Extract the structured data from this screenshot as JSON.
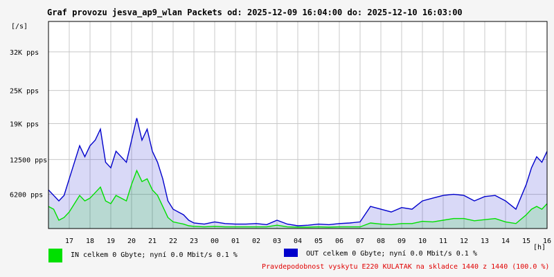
{
  "title": "Graf provozu jesva_ap9_wlan Packets od: 2025-12-09 16:04:00 do: 2025-12-10 16:03:00",
  "colors": {
    "in": "#00e000",
    "out": "#0000cc",
    "grid": "#c8c8c8",
    "plot_bg": "#ffffff",
    "note": "#e00000"
  },
  "legend": {
    "in": "IN celkem 0 Gbyte; nyní   0.0 Mbit/s 0.1 %",
    "out": "OUT celkem 0 Gbyte; nyní   0.0 Mbit/s 0.1 %"
  },
  "note": "Pravdepodobnost vyskytu E220 KULATAK na skladce 1440 z 1440 (100.0 %)",
  "chart_data": {
    "type": "area",
    "title": "Graf provozu jesva_ap9_wlan Packets od: 2025-12-09 16:04:00 do: 2025-12-10 16:03:00",
    "ylabel": "[/s]",
    "xlabel": "[h]",
    "ylim": [
      0,
      37500
    ],
    "xlim": [
      16,
      40
    ],
    "y_ticks": [
      {
        "value": 6200,
        "label": "6200 pps"
      },
      {
        "value": 12500,
        "label": "12500 pps"
      },
      {
        "value": 19000,
        "label": "19K pps"
      },
      {
        "value": 25000,
        "label": "25K pps"
      },
      {
        "value": 32000,
        "label": "32K pps"
      }
    ],
    "x_ticks": [
      {
        "value": 17,
        "label": "17"
      },
      {
        "value": 18,
        "label": "18"
      },
      {
        "value": 19,
        "label": "19"
      },
      {
        "value": 20,
        "label": "20"
      },
      {
        "value": 21,
        "label": "21"
      },
      {
        "value": 22,
        "label": "22"
      },
      {
        "value": 23,
        "label": "23"
      },
      {
        "value": 24,
        "label": "00"
      },
      {
        "value": 25,
        "label": "01"
      },
      {
        "value": 26,
        "label": "02"
      },
      {
        "value": 27,
        "label": "03"
      },
      {
        "value": 28,
        "label": "04"
      },
      {
        "value": 29,
        "label": "05"
      },
      {
        "value": 30,
        "label": "06"
      },
      {
        "value": 31,
        "label": "07"
      },
      {
        "value": 32,
        "label": "08"
      },
      {
        "value": 33,
        "label": "09"
      },
      {
        "value": 34,
        "label": "10"
      },
      {
        "value": 35,
        "label": "11"
      },
      {
        "value": 36,
        "label": "12"
      },
      {
        "value": 37,
        "label": "13"
      },
      {
        "value": 38,
        "label": "14"
      },
      {
        "value": 39,
        "label": "15"
      },
      {
        "value": 40,
        "label": "16"
      }
    ],
    "grid": true,
    "series": [
      {
        "name": "IN",
        "color": "#00e000",
        "x": [
          16.0,
          16.25,
          16.5,
          16.75,
          17.0,
          17.25,
          17.5,
          17.75,
          18.0,
          18.25,
          18.5,
          18.75,
          19.0,
          19.25,
          19.5,
          19.75,
          20.0,
          20.25,
          20.5,
          20.75,
          21.0,
          21.25,
          21.5,
          21.75,
          22.0,
          22.25,
          22.5,
          22.75,
          23.0,
          23.5,
          24.0,
          24.5,
          25.0,
          25.5,
          26.0,
          26.5,
          27.0,
          27.5,
          28.0,
          28.5,
          29.0,
          29.5,
          30.0,
          30.5,
          31.0,
          31.5,
          32.0,
          32.5,
          33.0,
          33.5,
          34.0,
          34.5,
          35.0,
          35.5,
          36.0,
          36.5,
          37.0,
          37.5,
          38.0,
          38.5,
          39.0,
          39.25,
          39.5,
          39.75,
          40.0
        ],
        "values": [
          4000,
          3500,
          1500,
          2000,
          3000,
          4500,
          6000,
          5000,
          5500,
          6500,
          7500,
          5000,
          4500,
          6000,
          5500,
          5000,
          8000,
          10500,
          8500,
          9000,
          7000,
          6000,
          4000,
          2000,
          1200,
          1000,
          800,
          500,
          400,
          300,
          400,
          300,
          300,
          300,
          300,
          300,
          600,
          300,
          250,
          250,
          300,
          250,
          300,
          300,
          300,
          1000,
          800,
          700,
          900,
          900,
          1300,
          1200,
          1500,
          1800,
          1800,
          1400,
          1600,
          1800,
          1200,
          900,
          2500,
          3500,
          4000,
          3500,
          4500
        ]
      },
      {
        "name": "OUT",
        "color": "#0000cc",
        "x": [
          16.0,
          16.25,
          16.5,
          16.75,
          17.0,
          17.25,
          17.5,
          17.75,
          18.0,
          18.25,
          18.5,
          18.75,
          19.0,
          19.25,
          19.5,
          19.75,
          20.0,
          20.25,
          20.5,
          20.75,
          21.0,
          21.25,
          21.5,
          21.75,
          22.0,
          22.25,
          22.5,
          22.75,
          23.0,
          23.5,
          24.0,
          24.5,
          25.0,
          25.5,
          26.0,
          26.5,
          27.0,
          27.5,
          28.0,
          28.5,
          29.0,
          29.5,
          30.0,
          30.5,
          31.0,
          31.5,
          32.0,
          32.5,
          33.0,
          33.5,
          34.0,
          34.5,
          35.0,
          35.5,
          36.0,
          36.5,
          37.0,
          37.5,
          38.0,
          38.5,
          39.0,
          39.25,
          39.5,
          39.75,
          40.0
        ],
        "values": [
          7000,
          6000,
          5000,
          6000,
          9000,
          12000,
          15000,
          13000,
          15000,
          16000,
          18000,
          12000,
          11000,
          14000,
          13000,
          12000,
          16000,
          20000,
          16000,
          18000,
          14000,
          12000,
          9000,
          5000,
          3500,
          3000,
          2500,
          1500,
          1000,
          800,
          1200,
          900,
          800,
          800,
          900,
          700,
          1500,
          800,
          500,
          600,
          800,
          700,
          900,
          1000,
          1200,
          4000,
          3500,
          3000,
          3800,
          3500,
          5000,
          5500,
          6000,
          6200,
          6000,
          5000,
          5800,
          6000,
          5000,
          3500,
          8000,
          11000,
          13000,
          12000,
          14000
        ]
      }
    ]
  }
}
